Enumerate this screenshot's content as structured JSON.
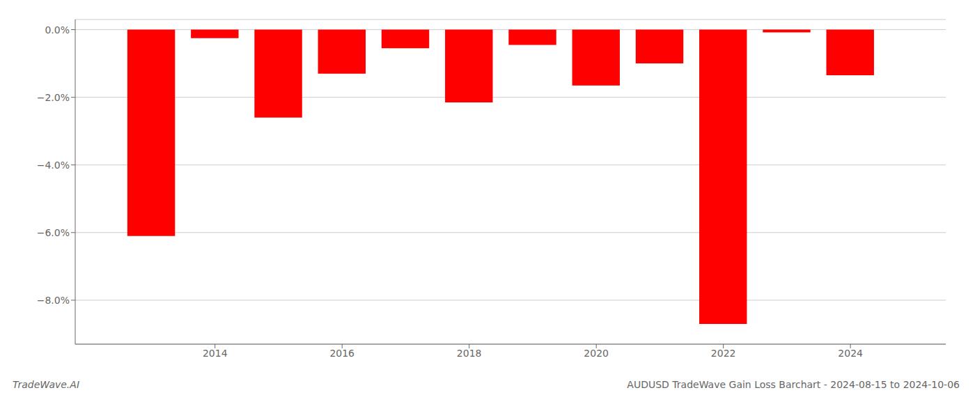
{
  "chart_data": {
    "type": "bar",
    "title": "AUDUSD TradeWave Gain Loss Barchart - 2024-08-15 to 2024-10-06",
    "annotations": [
      "TradeWave.AI"
    ],
    "x": [
      2013,
      2014,
      2015,
      2016,
      2017,
      2018,
      2019,
      2020,
      2021,
      2022,
      2023,
      2024
    ],
    "values": [
      -6.1,
      -0.25,
      -2.6,
      -1.3,
      -0.55,
      -2.15,
      -0.45,
      -1.65,
      -1.0,
      -8.7,
      -0.08,
      -1.35
    ],
    "color": "#ff0000",
    "xlim": [
      2011.8,
      2025.5
    ],
    "xticks": [
      2014,
      2016,
      2018,
      2020,
      2022,
      2024
    ],
    "ylim": [
      -9.3,
      0.3
    ],
    "yticks": [
      {
        "value": 0.0,
        "label": "0.0%"
      },
      {
        "value": -2.0,
        "label": "−2.0%"
      },
      {
        "value": -4.0,
        "label": "−4.0%"
      },
      {
        "value": -6.0,
        "label": "−6.0%"
      },
      {
        "value": -8.0,
        "label": "−8.0%"
      }
    ],
    "grid": "y"
  }
}
